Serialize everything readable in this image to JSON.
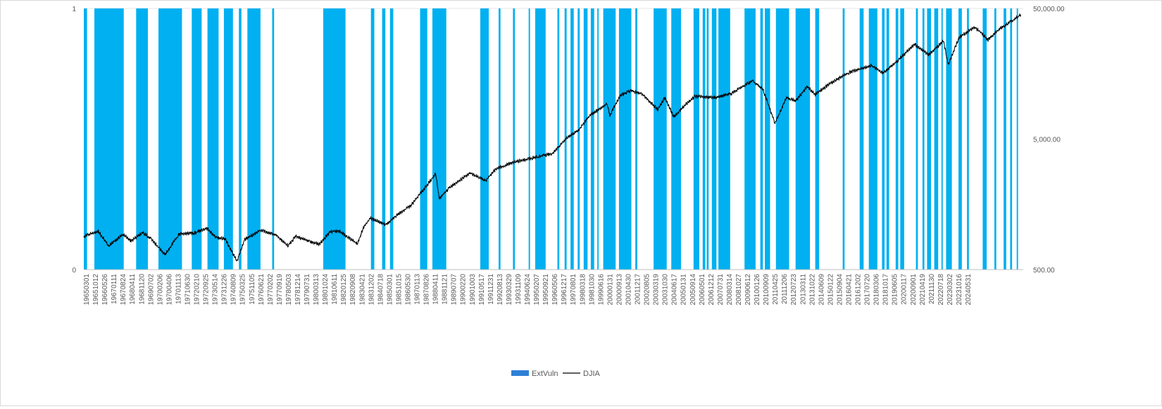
{
  "chart_data": {
    "type": "bar+line",
    "title": "",
    "xlabel": "",
    "y_left": {
      "ticks": [
        "0",
        "1"
      ],
      "ylim": [
        0,
        1
      ]
    },
    "y_right": {
      "ticks": [
        "500.00",
        "5,000.00",
        "50,000.00"
      ],
      "scale": "log",
      "ylim": [
        500,
        50000
      ]
    },
    "x_range": [
      "1965-03-01",
      "2024-12-31"
    ],
    "x_tick_labels": [
      "19650301",
      "19651012",
      "19660526",
      "19670111",
      "19670824",
      "19680411",
      "19681120",
      "19690702",
      "19700206",
      "19700406",
      "19701113",
      "19710630",
      "19720210",
      "19720925",
      "19730514",
      "19731226",
      "19740809",
      "19750325",
      "19751105",
      "19760621",
      "19770202",
      "19770919",
      "19780503",
      "19781214",
      "19790731",
      "19800313",
      "19801024",
      "19810611",
      "19820125",
      "19820908",
      "19830421",
      "19831202",
      "19840718",
      "19850301",
      "19851015",
      "19860530",
      "19870113",
      "19870826",
      "19880411",
      "19881121",
      "19890707",
      "19900220",
      "19901003",
      "19910517",
      "19911231",
      "19920813",
      "19930329",
      "19931109",
      "19940624",
      "19950207",
      "19950921",
      "19960506",
      "19961217",
      "19970801",
      "19980318",
      "19981030",
      "19990616",
      "20000131",
      "20000913",
      "20010430",
      "20011217",
      "20020805",
      "20030319",
      "20031030",
      "20040617",
      "20050131",
      "20050914",
      "20060501",
      "20061212",
      "20070731",
      "20080314",
      "20081027",
      "20090612",
      "20100126",
      "20100909",
      "20110425",
      "20111206",
      "20120723",
      "20130311",
      "20131022",
      "20140609",
      "20150122",
      "20150904",
      "20160421",
      "20161202",
      "20170720",
      "20180306",
      "20181017",
      "20190605",
      "20200117",
      "20200901",
      "20210419",
      "20211130",
      "20220718",
      "20230302",
      "20231016",
      "20240531"
    ],
    "series": [
      {
        "name": "ExtVuln",
        "type": "bar",
        "color": "#00b0f0",
        "value_when_on": 1,
        "intervals": [
          [
            "1965-03-01",
            "1965-05-15"
          ],
          [
            "1965-11-01",
            "1967-09-15"
          ],
          [
            "1968-07-01",
            "1969-04-01"
          ],
          [
            "1969-12-01",
            "1971-06-01"
          ],
          [
            "1972-01-15",
            "1972-09-01"
          ],
          [
            "1973-01-15",
            "1973-10-01"
          ],
          [
            "1974-02-01",
            "1974-09-01"
          ],
          [
            "1975-01-15",
            "1975-03-15"
          ],
          [
            "1975-08-01",
            "1976-06-01"
          ],
          [
            "1977-03-01",
            "1977-04-15"
          ],
          [
            "1980-06-01",
            "1981-11-01"
          ],
          [
            "1983-06-15",
            "1983-09-01"
          ],
          [
            "1984-03-01",
            "1984-05-15"
          ],
          [
            "1984-09-01",
            "1984-11-15"
          ],
          [
            "1986-08-01",
            "1987-01-15"
          ],
          [
            "1987-05-15",
            "1988-04-01"
          ],
          [
            "1990-06-01",
            "1990-12-15"
          ],
          [
            "1991-08-01",
            "1991-09-15"
          ],
          [
            "1992-07-01",
            "1992-08-15"
          ],
          [
            "1993-07-01",
            "1993-08-01"
          ],
          [
            "1993-12-01",
            "1994-08-01"
          ],
          [
            "1995-05-01",
            "1995-06-15"
          ],
          [
            "1995-10-15",
            "1995-12-01"
          ],
          [
            "1996-03-01",
            "1996-05-15"
          ],
          [
            "1996-08-15",
            "1996-10-01"
          ],
          [
            "1997-01-01",
            "1997-04-01"
          ],
          [
            "1997-06-15",
            "1997-09-01"
          ],
          [
            "1997-11-15",
            "1997-12-15"
          ],
          [
            "1998-04-01",
            "1999-01-15"
          ],
          [
            "1999-04-01",
            "2000-01-15"
          ],
          [
            "2000-04-15",
            "2000-06-01"
          ],
          [
            "2001-06-15",
            "2002-04-15"
          ],
          [
            "2002-08-01",
            "2003-03-15"
          ],
          [
            "2004-01-01",
            "2004-05-15"
          ],
          [
            "2004-08-01",
            "2004-10-01"
          ],
          [
            "2004-11-01",
            "2004-12-15"
          ],
          [
            "2005-03-01",
            "2005-06-15"
          ],
          [
            "2005-08-01",
            "2006-05-01"
          ],
          [
            "2007-04-01",
            "2007-12-15"
          ],
          [
            "2008-04-01",
            "2008-06-01"
          ],
          [
            "2008-07-15",
            "2008-11-15"
          ],
          [
            "2009-04-01",
            "2010-02-01"
          ],
          [
            "2010-07-01",
            "2011-06-01"
          ],
          [
            "2011-10-01",
            "2012-01-01"
          ],
          [
            "2013-07-01",
            "2013-08-15"
          ],
          [
            "2014-08-01",
            "2014-11-01"
          ],
          [
            "2015-03-01",
            "2015-09-15"
          ],
          [
            "2016-01-01",
            "2016-03-01"
          ],
          [
            "2016-04-15",
            "2016-06-15"
          ],
          [
            "2016-11-15",
            "2017-01-15"
          ],
          [
            "2017-03-01",
            "2017-06-01"
          ],
          [
            "2018-03-01",
            "2018-04-15"
          ],
          [
            "2018-08-01",
            "2018-09-15"
          ],
          [
            "2018-11-15",
            "2019-02-15"
          ],
          [
            "2019-05-01",
            "2019-08-01"
          ],
          [
            "2019-10-15",
            "2019-11-15"
          ],
          [
            "2020-02-01",
            "2020-06-15"
          ],
          [
            "2020-11-15",
            "2021-02-01"
          ],
          [
            "2021-06-01",
            "2021-07-15"
          ],
          [
            "2022-06-01",
            "2022-09-01"
          ],
          [
            "2023-03-01",
            "2023-04-15"
          ],
          [
            "2023-10-01",
            "2023-12-01"
          ],
          [
            "2024-03-01",
            "2024-04-15"
          ],
          [
            "2024-08-01",
            "2024-09-01"
          ]
        ]
      },
      {
        "name": "DJIA",
        "type": "line",
        "axis": "right",
        "color": "#000000",
        "points": [
          [
            "1965-03-01",
            900
          ],
          [
            "1966-02-01",
            980
          ],
          [
            "1966-10-01",
            760
          ],
          [
            "1967-09-01",
            930
          ],
          [
            "1968-03-01",
            830
          ],
          [
            "1968-12-01",
            960
          ],
          [
            "1969-06-01",
            870
          ],
          [
            "1970-05-01",
            650
          ],
          [
            "1971-04-01",
            940
          ],
          [
            "1972-03-01",
            950
          ],
          [
            "1973-01-01",
            1040
          ],
          [
            "1973-08-01",
            880
          ],
          [
            "1974-03-01",
            860
          ],
          [
            "1974-12-01",
            580
          ],
          [
            "1975-06-01",
            850
          ],
          [
            "1976-06-01",
            1000
          ],
          [
            "1977-06-01",
            920
          ],
          [
            "1978-03-01",
            760
          ],
          [
            "1978-09-01",
            900
          ],
          [
            "1979-06-01",
            830
          ],
          [
            "1980-03-01",
            780
          ],
          [
            "1980-11-01",
            970
          ],
          [
            "1981-06-01",
            990
          ],
          [
            "1982-08-01",
            790
          ],
          [
            "1983-01-01",
            1060
          ],
          [
            "1983-06-01",
            1240
          ],
          [
            "1984-06-01",
            1100
          ],
          [
            "1985-01-01",
            1280
          ],
          [
            "1986-01-01",
            1550
          ],
          [
            "1987-08-01",
            2700
          ],
          [
            "1987-10-19",
            1750
          ],
          [
            "1988-06-01",
            2100
          ],
          [
            "1989-10-01",
            2750
          ],
          [
            "1990-10-01",
            2400
          ],
          [
            "1991-06-01",
            2950
          ],
          [
            "1992-06-01",
            3300
          ],
          [
            "1993-06-01",
            3500
          ],
          [
            "1994-06-01",
            3750
          ],
          [
            "1995-01-01",
            3850
          ],
          [
            "1995-12-01",
            5100
          ],
          [
            "1996-08-01",
            5700
          ],
          [
            "1997-06-01",
            7600
          ],
          [
            "1998-07-01",
            9300
          ],
          [
            "1998-09-01",
            7600
          ],
          [
            "1999-05-01",
            10800
          ],
          [
            "2000-01-01",
            11700
          ],
          [
            "2000-09-01",
            11200
          ],
          [
            "2001-03-01",
            9800
          ],
          [
            "2001-09-20",
            8400
          ],
          [
            "2002-03-01",
            10400
          ],
          [
            "2002-10-01",
            7400
          ],
          [
            "2003-06-01",
            9000
          ],
          [
            "2004-02-01",
            10600
          ],
          [
            "2005-06-01",
            10400
          ],
          [
            "2006-06-01",
            11200
          ],
          [
            "2007-10-01",
            14000
          ],
          [
            "2008-06-01",
            12000
          ],
          [
            "2009-03-09",
            6600
          ],
          [
            "2009-12-01",
            10400
          ],
          [
            "2010-07-01",
            9800
          ],
          [
            "2011-04-01",
            12600
          ],
          [
            "2011-10-01",
            11000
          ],
          [
            "2012-10-01",
            13400
          ],
          [
            "2013-12-01",
            16200
          ],
          [
            "2015-05-01",
            18200
          ],
          [
            "2016-02-01",
            16000
          ],
          [
            "2017-01-01",
            19900
          ],
          [
            "2018-01-26",
            26600
          ],
          [
            "2018-12-24",
            22000
          ],
          [
            "2019-12-01",
            28200
          ],
          [
            "2020-03-23",
            18600
          ],
          [
            "2020-12-01",
            30000
          ],
          [
            "2021-12-01",
            36000
          ],
          [
            "2022-09-30",
            28800
          ],
          [
            "2023-07-01",
            35000
          ],
          [
            "2023-12-01",
            37500
          ],
          [
            "2024-11-01",
            44800
          ]
        ]
      }
    ],
    "legend": {
      "position": "bottom"
    }
  }
}
